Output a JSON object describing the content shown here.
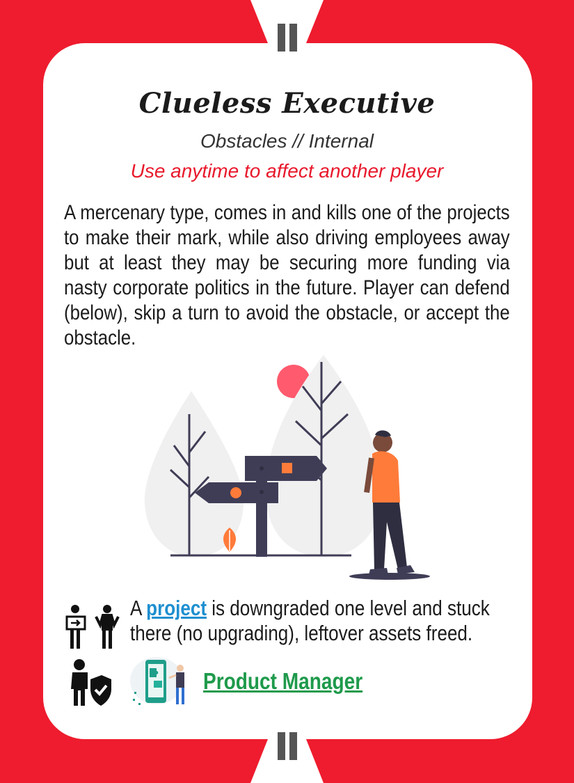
{
  "card": {
    "title": "Clueless Executive",
    "category": "Obstacles // Internal",
    "usage": "Use anytime to affect another player",
    "description": "A mercenary type, comes in and kills one of the projects to make their mark, while also driving employees away but at least they may be securing more funding via nasty corporate politics in the future. Player can defend (below), skip a turn to avoid the obstacle, or accept the obstacle.",
    "effect": {
      "prefix": "A",
      "link": "project",
      "suffix": "is downgraded one level and stuck there (no upgrading), leftover assets freed."
    },
    "defender": "Product Manager"
  },
  "icons": {
    "top": "pause-bars-icon",
    "bottom": "pause-bars-icon",
    "effect": "team-handoff-icon",
    "defend": "person-shield-icon",
    "defender_image": "puzzle-phone-illustration",
    "main_image": "signpost-person-illustration"
  },
  "colors": {
    "frame": "#ee1c2e",
    "accent_text": "#e8192c",
    "link": "#1e8fd0",
    "defender": "#1e9a4b",
    "person_shirt": "#ff7b3a"
  }
}
